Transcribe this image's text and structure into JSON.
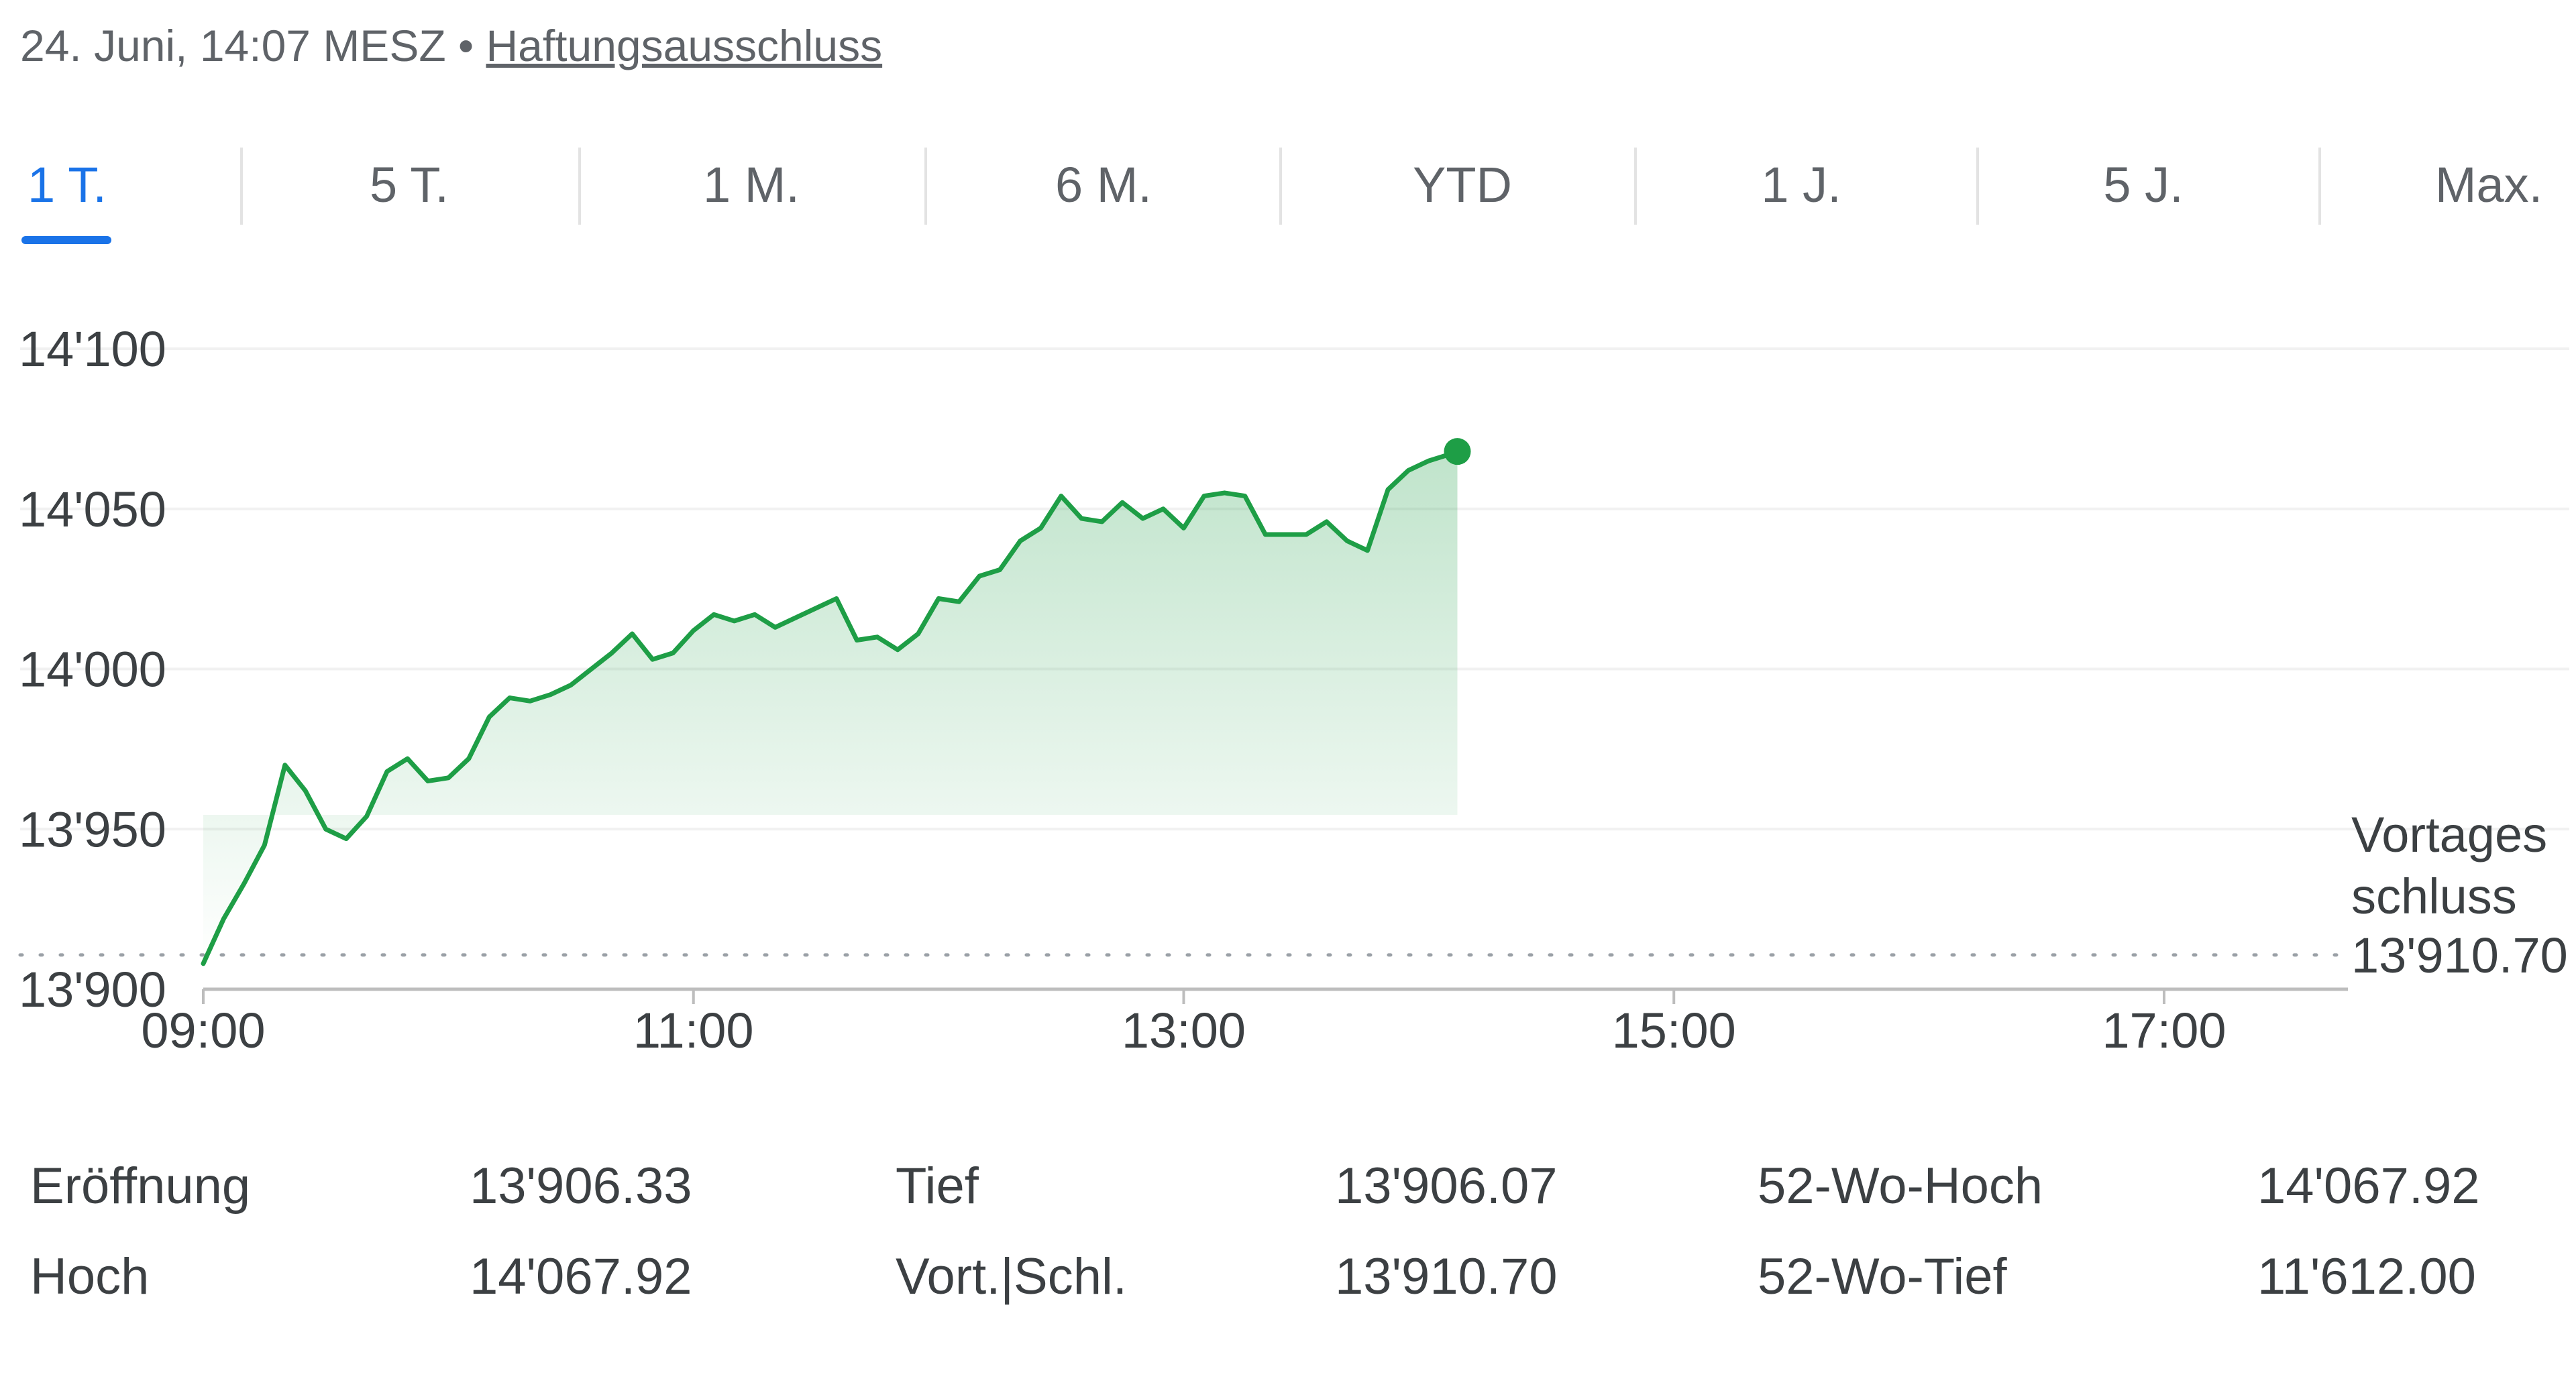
{
  "header": {
    "datetime": "24. Juni, 14:07 MESZ",
    "separator": "•",
    "disclaimer": "Haftungsausschluss"
  },
  "tabs": [
    {
      "label": "1 T.",
      "active": true
    },
    {
      "label": "5 T.",
      "active": false
    },
    {
      "label": "1 M.",
      "active": false
    },
    {
      "label": "6 M.",
      "active": false
    },
    {
      "label": "YTD",
      "active": false
    },
    {
      "label": "1 J.",
      "active": false
    },
    {
      "label": "5 J.",
      "active": false
    },
    {
      "label": "Max.",
      "active": false
    }
  ],
  "colors": {
    "accent": "#1a73e8",
    "line": "#1e9e46",
    "fill_top": "#1e9e46",
    "grid": "#f1f1f1",
    "text": "#3c4043"
  },
  "chart_data": {
    "type": "area",
    "ylim": [
      13900,
      14100
    ],
    "y_ticks": [
      {
        "value": 13900,
        "label": "13'900"
      },
      {
        "value": 13950,
        "label": "13'950"
      },
      {
        "value": 14000,
        "label": "14'000"
      },
      {
        "value": 14050,
        "label": "14'050"
      },
      {
        "value": 14100,
        "label": "14'100"
      }
    ],
    "x_range": [
      "09:00",
      "17:45"
    ],
    "x_ticks": [
      "09:00",
      "11:00",
      "13:00",
      "15:00",
      "17:00"
    ],
    "previous_close": {
      "value": 13910.7,
      "label_lines": [
        "Vortages",
        "schluss"
      ],
      "value_label": "13'910.70"
    },
    "series": [
      {
        "x": [
          "09:00",
          "09:05",
          "09:10",
          "09:15",
          "09:20",
          "09:25",
          "09:30",
          "09:35",
          "09:40",
          "09:45",
          "09:50",
          "09:55",
          "10:00",
          "10:05",
          "10:10",
          "10:15",
          "10:20",
          "10:25",
          "10:30",
          "10:35",
          "10:40",
          "10:45",
          "10:50",
          "10:55",
          "11:00",
          "11:05",
          "11:10",
          "11:15",
          "11:20",
          "11:25",
          "11:30",
          "11:35",
          "11:40",
          "11:45",
          "11:50",
          "11:55",
          "12:00",
          "12:05",
          "12:10",
          "12:15",
          "12:20",
          "12:25",
          "12:30",
          "12:35",
          "12:40",
          "12:45",
          "12:50",
          "12:55",
          "13:00",
          "13:05",
          "13:10",
          "13:15",
          "13:20",
          "13:25",
          "13:30",
          "13:35",
          "13:40",
          "13:45",
          "13:50",
          "13:55",
          "14:00",
          "14:05",
          "14:07"
        ],
        "y": [
          13908,
          13922,
          13933,
          13945,
          13970,
          13962,
          13950,
          13947,
          13954,
          13968,
          13972,
          13965,
          13966,
          13972,
          13985,
          13991,
          13990,
          13992,
          13995,
          14000,
          14005,
          14011,
          14003,
          14005,
          14012,
          14017,
          14015,
          14017,
          14013,
          14016,
          14019,
          14022,
          14009,
          14010,
          14006,
          14011,
          14022,
          14021,
          14029,
          14031,
          14040,
          14044,
          14054,
          14047,
          14046,
          14052,
          14047,
          14050,
          14044,
          14054,
          14055,
          14054,
          14042,
          14042,
          14042,
          14046,
          14040,
          14037,
          14056,
          14062,
          14065,
          14067,
          14067.92
        ]
      }
    ]
  },
  "stats": [
    {
      "label": "Eröffnung",
      "value": "13'906.33"
    },
    {
      "label": "Hoch",
      "value": "14'067.92"
    },
    {
      "label": "Tief",
      "value": "13'906.07"
    },
    {
      "label": "Vort.|Schl.",
      "value": "13'910.70"
    },
    {
      "label": "52-Wo-Hoch",
      "value": "14'067.92"
    },
    {
      "label": "52-Wo-Tief",
      "value": "11'612.00"
    }
  ]
}
